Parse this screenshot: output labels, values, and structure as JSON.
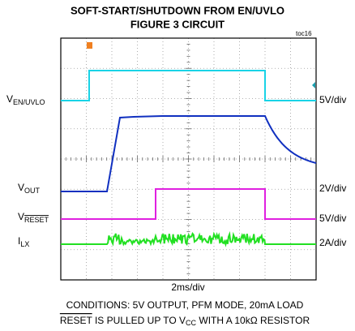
{
  "title": [
    "SOFT-START/SHUTDOWN FROM EN/UVLO",
    "FIGURE 3 CIRCUIT"
  ],
  "code": "toc16",
  "channels": [
    {
      "main": "V",
      "sub": "EN/UVLO",
      "scale": "5V/div"
    },
    {
      "main": "V",
      "sub": "OUT",
      "scale": "2V/div"
    },
    {
      "main": "V",
      "sub": "RESET",
      "scale": "5V/div"
    },
    {
      "main": "I",
      "sub": "LX",
      "scale": "2A/div"
    }
  ],
  "time_scale": "2ms/div",
  "conditions": [
    "CONDITIONS: 5V OUTPUT, PFM MODE, 20mA LOAD",
    [
      "RESET",
      " IS PULLED UP TO V",
      "CC",
      " WITH A 10kΩ RESISTOR"
    ]
  ]
}
